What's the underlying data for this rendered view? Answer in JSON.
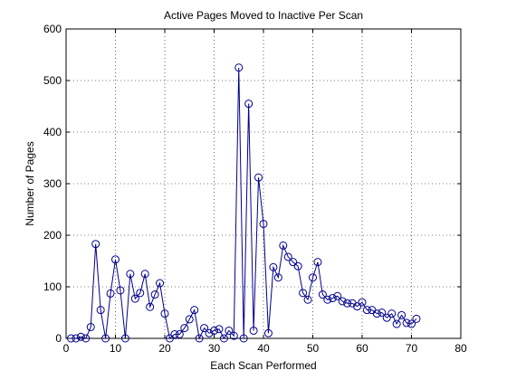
{
  "chart_data": {
    "type": "line",
    "title": "Active Pages Moved to Inactive Per Scan",
    "xlabel": "Each Scan Performed",
    "ylabel": "Number of Pages",
    "xlim": [
      0,
      80
    ],
    "ylim": [
      0,
      600
    ],
    "xticks": [
      "0",
      "10",
      "20",
      "30",
      "40",
      "50",
      "60",
      "70",
      "80"
    ],
    "yticks": [
      "0",
      "100",
      "200",
      "300",
      "400",
      "500",
      "600"
    ],
    "grid": true,
    "legend": "none",
    "marker": "circle",
    "color": "#00008b",
    "series": [
      {
        "x": [
          1,
          2,
          3,
          4,
          5,
          6,
          7,
          8,
          9,
          10,
          11,
          12,
          13,
          14,
          15,
          16,
          17,
          18,
          19,
          20,
          21,
          22,
          23,
          24,
          25,
          26,
          27,
          28,
          29,
          30,
          31,
          32,
          33,
          34,
          35,
          36,
          37,
          38,
          39,
          40,
          41,
          42,
          43,
          44,
          45,
          46,
          47,
          48,
          49,
          50,
          51,
          52,
          53,
          54,
          55,
          56,
          57,
          58,
          59,
          60,
          61,
          62,
          63,
          64,
          65,
          66,
          67,
          68,
          69,
          70,
          71
        ],
        "values": [
          0,
          0,
          3,
          0,
          22,
          183,
          55,
          0,
          87,
          153,
          93,
          0,
          125,
          77,
          88,
          125,
          61,
          85,
          107,
          48,
          0,
          8,
          8,
          20,
          37,
          55,
          0,
          20,
          10,
          15,
          18,
          0,
          15,
          5,
          525,
          0,
          455,
          15,
          312,
          222,
          10,
          138,
          118,
          180,
          158,
          148,
          140,
          88,
          75,
          118,
          148,
          85,
          75,
          78,
          82,
          72,
          68,
          68,
          62,
          70,
          55,
          55,
          48,
          50,
          40,
          48,
          28,
          45,
          30,
          28,
          38
        ]
      }
    ]
  }
}
